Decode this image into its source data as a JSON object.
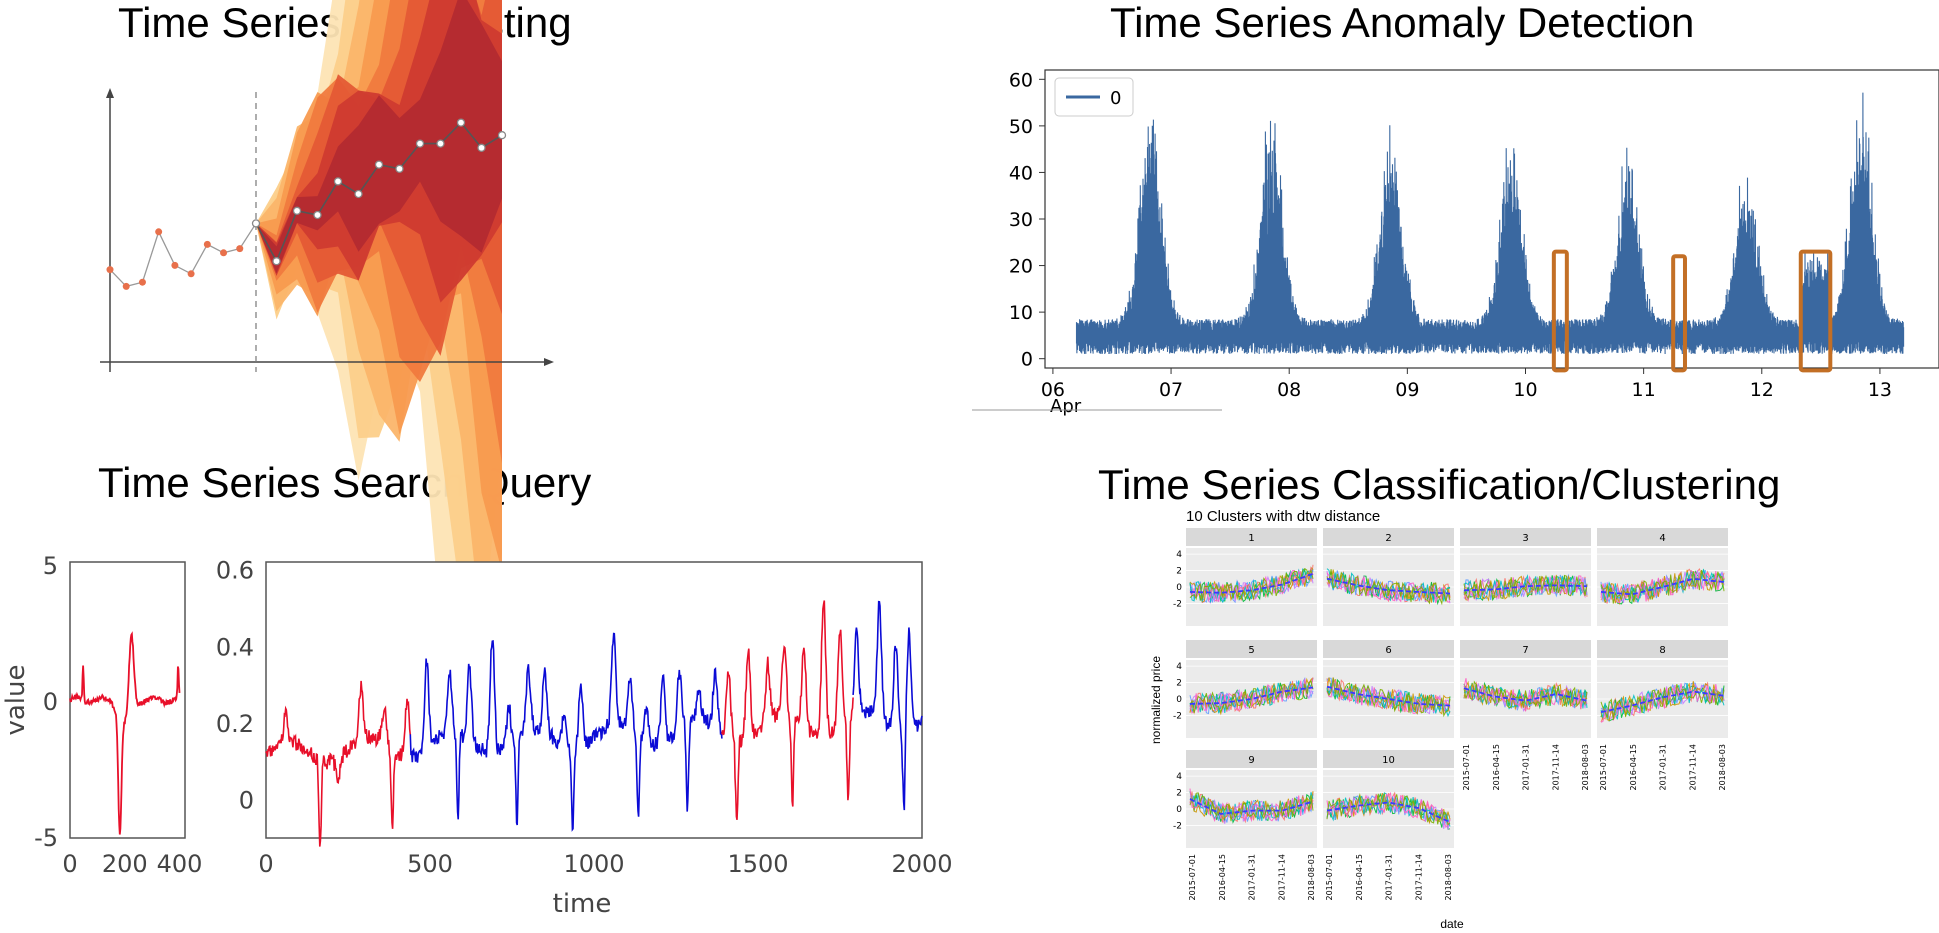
{
  "titles": {
    "forecasting": "Time Series Forecasting",
    "anomaly": "Time Series Anomaly Detection",
    "search": "Time Series Search/Query",
    "classification": "Time Series Classification/Clustering"
  },
  "colors": {
    "forecast_point": "#e8704b",
    "anomaly_line": "#3a68a0",
    "anomaly_box": "#c36f25",
    "query_red": "#e8102a",
    "match_blue": "#0b0bd6"
  },
  "chart_data": [
    {
      "id": "forecasting",
      "type": "line",
      "history": [
        0.22,
        0.18,
        0.19,
        0.31,
        0.23,
        0.21,
        0.28,
        0.26,
        0.27,
        0.33
      ],
      "forecast": [
        0.33,
        0.24,
        0.36,
        0.35,
        0.43,
        0.4,
        0.47,
        0.46,
        0.52,
        0.52,
        0.57,
        0.51,
        0.54
      ],
      "grid": false
    },
    {
      "id": "anomaly",
      "type": "line",
      "legend": [
        "0"
      ],
      "legend_position": "top-left",
      "x_ticks": [
        "06",
        "07",
        "08",
        "09",
        "10",
        "11",
        "12",
        "13"
      ],
      "x_sublabel": "Apr",
      "y_ticks": [
        "0",
        "10",
        "20",
        "30",
        "40",
        "50",
        "60"
      ],
      "xlim": [
        5.95,
        13.5
      ],
      "ylim": [
        -2,
        62
      ],
      "peaks": [
        {
          "center": 6.83,
          "height": 58
        },
        {
          "center": 7.85,
          "height": 54
        },
        {
          "center": 8.86,
          "height": 54
        },
        {
          "center": 9.88,
          "height": 50
        },
        {
          "center": 10.87,
          "height": 46
        },
        {
          "center": 11.87,
          "height": 43
        },
        {
          "center": 12.84,
          "height": 60
        }
      ],
      "anomalies": [
        {
          "x_start": 10.24,
          "x_end": 10.35,
          "y_max": 23
        },
        {
          "x_start": 11.25,
          "x_end": 11.35,
          "y_max": 22
        },
        {
          "x_start": 12.33,
          "x_end": 12.58,
          "y_max": 23
        }
      ]
    },
    {
      "id": "query",
      "type": "line",
      "xlabel": "value",
      "x_ticks": [
        "0",
        "200",
        "400"
      ],
      "y_ticks": [
        "5",
        "0",
        "-5"
      ],
      "xlim": [
        0,
        420
      ],
      "ylim": [
        -5,
        5
      ],
      "series_color": "#e8102a"
    },
    {
      "id": "search",
      "type": "line",
      "xlabel": "time",
      "x_ticks": [
        "0",
        "500",
        "1000",
        "1500",
        "2000"
      ],
      "y_ticks": [
        "0.6",
        "0.4",
        "0.2",
        "0"
      ],
      "xlim": [
        0,
        2000
      ],
      "ylim": [
        -0.1,
        0.62
      ],
      "segments": [
        {
          "x_start": 0,
          "x_end": 440,
          "color": "query_red"
        },
        {
          "x_start": 440,
          "x_end": 1390,
          "color": "match_blue"
        },
        {
          "x_start": 1390,
          "x_end": 1790,
          "color": "query_red"
        },
        {
          "x_start": 1790,
          "x_end": 2000,
          "color": "match_blue"
        }
      ]
    },
    {
      "id": "clusters",
      "type": "line",
      "title": "10 Clusters with dtw distance",
      "ylabel": "normalized price",
      "xlabel": "date",
      "facets": [
        "1",
        "2",
        "3",
        "4",
        "5",
        "6",
        "7",
        "8",
        "9",
        "10"
      ],
      "y_ticks": [
        "4",
        "2",
        "0",
        "-2"
      ],
      "x_ticks": [
        "2015-07-01",
        "2016-04-15",
        "2017-01-31",
        "2017-11-14",
        "2018-08-03"
      ],
      "trends": [
        [
          -0.6,
          -0.7,
          -0.4,
          0.3,
          1.6
        ],
        [
          1.0,
          0.2,
          -0.4,
          -0.6,
          -0.8
        ],
        [
          -0.4,
          -0.3,
          0.1,
          0.2,
          0.1
        ],
        [
          -0.6,
          -0.9,
          0.0,
          1.0,
          0.6
        ],
        [
          -0.6,
          -0.5,
          0.0,
          0.9,
          1.4
        ],
        [
          1.5,
          0.6,
          0.0,
          -0.6,
          -0.8
        ],
        [
          1.3,
          0.3,
          -0.2,
          0.6,
          -0.2
        ],
        [
          -1.6,
          -0.8,
          0.2,
          0.9,
          0.4
        ],
        [
          1.2,
          -0.6,
          -0.2,
          -0.2,
          0.9
        ],
        [
          -0.2,
          0.4,
          0.8,
          0.1,
          -1.6
        ]
      ],
      "series_colors": [
        "#f8766d",
        "#00ba38",
        "#619cff",
        "#c77cff",
        "#cd9600",
        "#00bfc4",
        "#ff61c3",
        "#7cae00"
      ]
    }
  ]
}
